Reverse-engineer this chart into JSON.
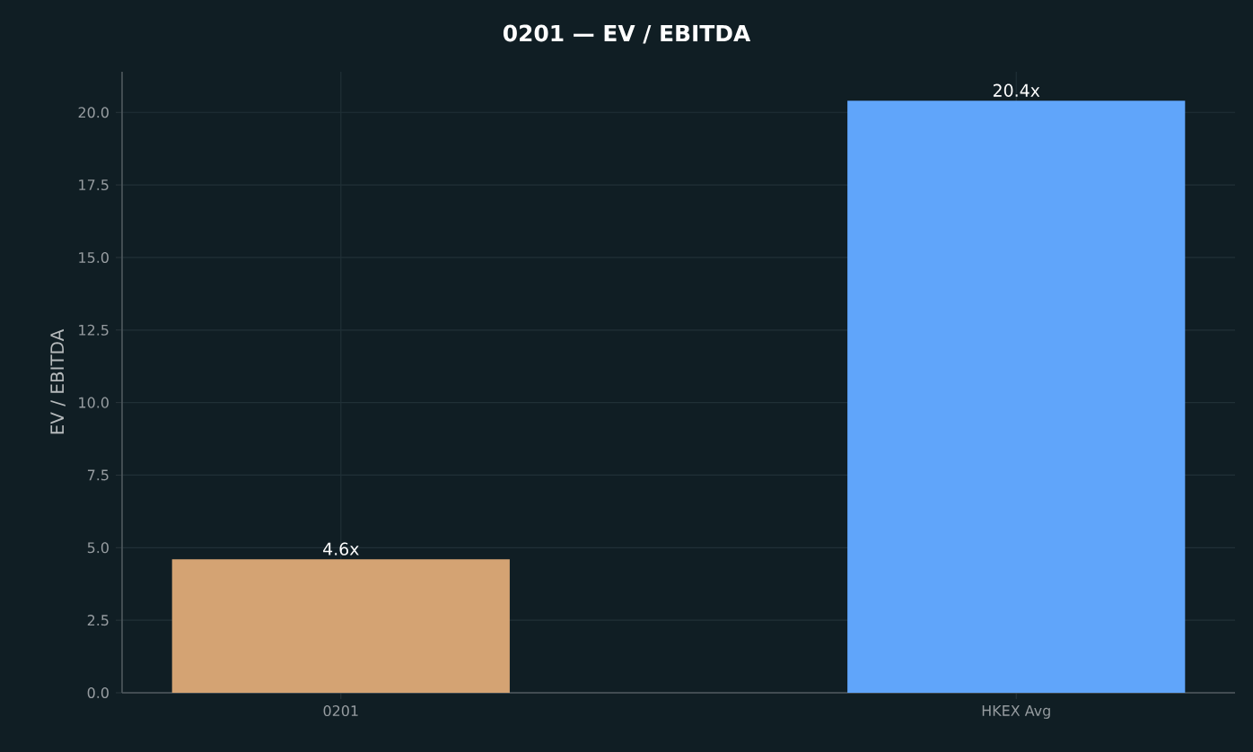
{
  "chart_data": {
    "type": "bar",
    "title": "0201 — EV / EBITDA",
    "ylabel": "EV / EBITDA",
    "categories": [
      "0201",
      "HKEX Avg"
    ],
    "values": [
      4.6,
      20.4
    ],
    "colors": [
      "#d4a373",
      "#60a5fa"
    ],
    "value_labels": [
      "4.6x",
      "20.4x"
    ],
    "ylim": [
      0,
      21.4
    ],
    "yticks": [
      {
        "value": 0,
        "label": "0.0"
      },
      {
        "value": 2.5,
        "label": "2.5"
      },
      {
        "value": 5,
        "label": "5.0"
      },
      {
        "value": 7.5,
        "label": "7.5"
      },
      {
        "value": 10,
        "label": "10.0"
      },
      {
        "value": 12.5,
        "label": "12.5"
      },
      {
        "value": 15,
        "label": "15.0"
      },
      {
        "value": 17.5,
        "label": "17.5"
      },
      {
        "value": 20,
        "label": "20.0"
      }
    ],
    "grid": true
  }
}
